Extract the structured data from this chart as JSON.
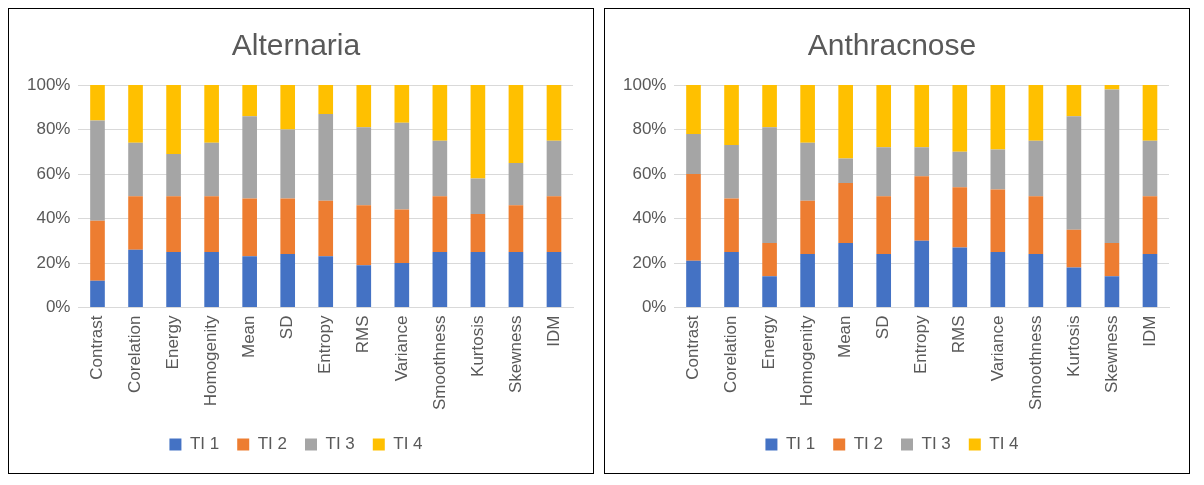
{
  "chart_data": [
    {
      "type": "bar",
      "title": "Alternaria",
      "stacked": true,
      "categories": [
        "Contrast",
        "Corelation",
        "Energy",
        "Homogenity",
        "Mean",
        "SD",
        "Entropy",
        "RMS",
        "Variance",
        "Smoothness",
        "Kurtosis",
        "Skewness",
        "IDM"
      ],
      "series": [
        {
          "name": "TI 1",
          "color": "#4472c4",
          "values": [
            12,
            26,
            25,
            25,
            23,
            24,
            23,
            19,
            20,
            25,
            25,
            25,
            25
          ]
        },
        {
          "name": "TI 2",
          "color": "#ed7d31",
          "values": [
            27,
            24,
            25,
            25,
            26,
            25,
            25,
            27,
            24,
            25,
            17,
            21,
            25
          ]
        },
        {
          "name": "TI 3",
          "color": "#a5a5a5",
          "values": [
            45,
            24,
            19,
            24,
            37,
            31,
            39,
            35,
            39,
            25,
            16,
            19,
            25
          ]
        },
        {
          "name": "TI 4",
          "color": "#ffc000",
          "values": [
            16,
            26,
            31,
            26,
            14,
            20,
            13,
            19,
            17,
            25,
            42,
            35,
            25
          ]
        }
      ],
      "ylim": [
        0,
        100
      ],
      "yticks": [
        {
          "value": 0,
          "label": "0%"
        },
        {
          "value": 20,
          "label": "20%"
        },
        {
          "value": 40,
          "label": "40%"
        },
        {
          "value": 60,
          "label": "60%"
        },
        {
          "value": 80,
          "label": "80%"
        },
        {
          "value": 100,
          "label": "100%"
        }
      ],
      "grid": "y",
      "legend": "bottom"
    },
    {
      "type": "bar",
      "title": "Anthracnose",
      "stacked": true,
      "categories": [
        "Contrast",
        "Corelation",
        "Energy",
        "Homogenity",
        "Mean",
        "SD",
        "Entropy",
        "RMS",
        "Variance",
        "Smoothness",
        "Kurtosis",
        "Skewness",
        "IDM"
      ],
      "series": [
        {
          "name": "TI 1",
          "color": "#4472c4",
          "values": [
            21,
            25,
            14,
            24,
            29,
            24,
            30,
            27,
            25,
            24,
            18,
            14,
            24
          ]
        },
        {
          "name": "TI 2",
          "color": "#ed7d31",
          "values": [
            39,
            24,
            15,
            24,
            27,
            26,
            29,
            27,
            28,
            26,
            17,
            15,
            26
          ]
        },
        {
          "name": "TI 3",
          "color": "#a5a5a5",
          "values": [
            18,
            24,
            52,
            26,
            11,
            22,
            13,
            16,
            18,
            25,
            51,
            69,
            25
          ]
        },
        {
          "name": "TI 4",
          "color": "#ffc000",
          "values": [
            22,
            27,
            19,
            26,
            33,
            28,
            28,
            30,
            29,
            25,
            14,
            2,
            25
          ]
        }
      ],
      "ylim": [
        0,
        100
      ],
      "yticks": [
        {
          "value": 0,
          "label": "0%"
        },
        {
          "value": 20,
          "label": "20%"
        },
        {
          "value": 40,
          "label": "40%"
        },
        {
          "value": 60,
          "label": "60%"
        },
        {
          "value": 80,
          "label": "80%"
        },
        {
          "value": 100,
          "label": "100%"
        }
      ],
      "grid": "y",
      "legend": "bottom"
    }
  ]
}
